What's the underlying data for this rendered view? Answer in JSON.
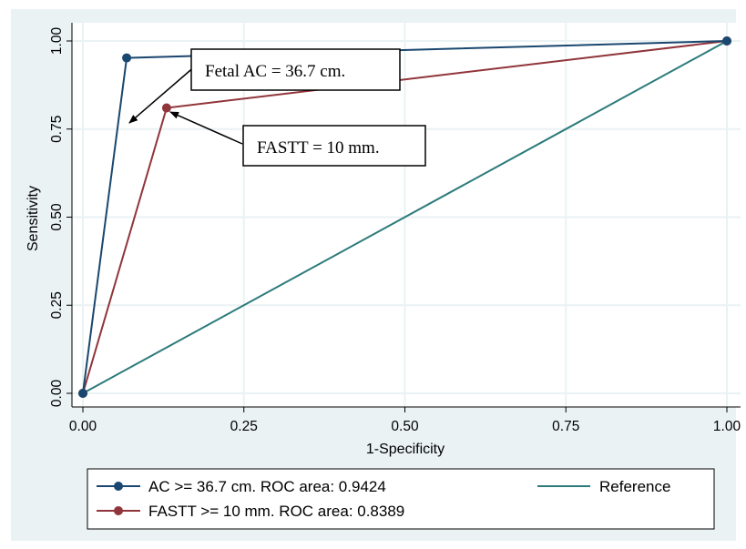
{
  "chart_data": {
    "type": "line",
    "xlabel": "1-Specificity",
    "ylabel": "Sensitivity",
    "xlim": [
      0,
      1
    ],
    "ylim": [
      0,
      1
    ],
    "xticks": [
      "0.00",
      "0.25",
      "0.50",
      "0.75",
      "1.00"
    ],
    "yticks": [
      "0.00",
      "0.25",
      "0.50",
      "0.75",
      "1.00"
    ],
    "grid": true,
    "legend_position": "bottom",
    "series": [
      {
        "name": "AC >= 36.7 cm. ROC area: 0.9424",
        "color": "#1a476f",
        "markers": true,
        "points": [
          [
            0,
            0
          ],
          [
            0.068,
            0.952
          ],
          [
            1,
            1
          ]
        ]
      },
      {
        "name": "FASTT >= 10 mm. ROC area: 0.8389",
        "color": "#90353b",
        "markers": true,
        "points": [
          [
            0,
            0
          ],
          [
            0.13,
            0.81
          ],
          [
            1,
            1
          ]
        ]
      },
      {
        "name": "Reference",
        "color": "#2d7a7a",
        "markers": false,
        "points": [
          [
            0,
            0
          ],
          [
            1,
            1
          ]
        ]
      }
    ],
    "annotations": [
      {
        "text": "Fetal AC = 36.7 cm.",
        "points_to": [
          0.068,
          0.952
        ]
      },
      {
        "text": "FASTT = 10 mm.",
        "points_to": [
          0.13,
          0.81
        ]
      }
    ]
  }
}
